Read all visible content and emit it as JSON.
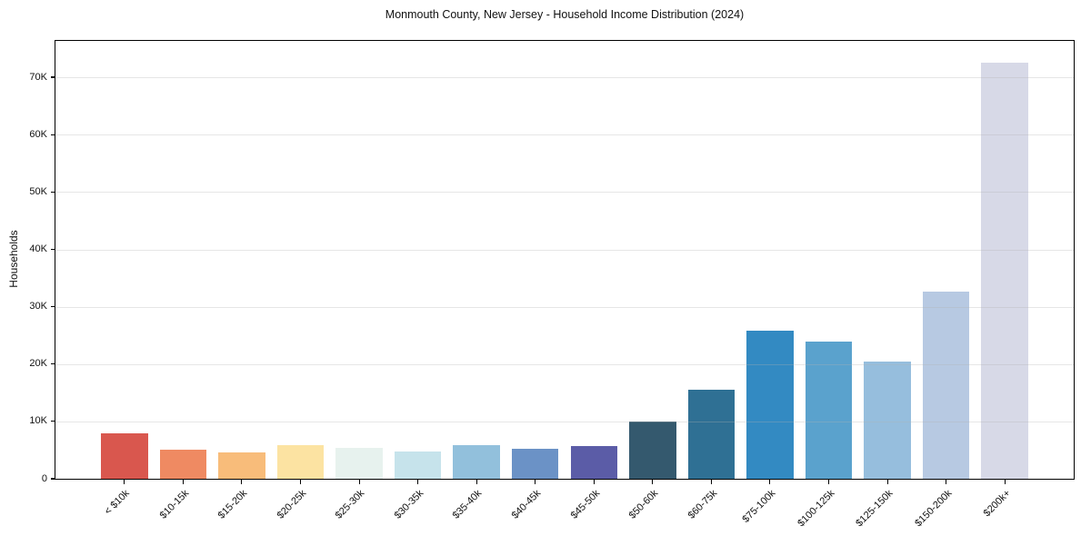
{
  "chart_data": {
    "type": "bar",
    "title": "Monmouth County, New Jersey - Household Income Distribution (2024)",
    "xlabel": "",
    "ylabel": "Households",
    "categories": [
      "< $10k",
      "$10-15k",
      "$15-20k",
      "$20-25k",
      "$25-30k",
      "$30-35k",
      "$35-40k",
      "$40-45k",
      "$45-50k",
      "$50-60k",
      "$60-75k",
      "$75-100k",
      "$100-125k",
      "$125-150k",
      "$150-200k",
      "$200k+"
    ],
    "values": [
      8000,
      5100,
      4600,
      5800,
      5400,
      4800,
      5800,
      5300,
      5700,
      10000,
      15600,
      25800,
      23900,
      20400,
      32700,
      72600
    ],
    "bar_colors": [
      "#d9574e",
      "#ef8a62",
      "#f8bc7a",
      "#fce3a2",
      "#e7f2ee",
      "#c6e3eb",
      "#92c0dc",
      "#6b92c6",
      "#5b5ca7",
      "#34596e",
      "#2f7094",
      "#338ac2",
      "#5aa2cd",
      "#96bedd",
      "#b7c9e2",
      "#d7d9e7"
    ],
    "yticks": [
      {
        "value": 0,
        "label": "0"
      },
      {
        "value": 10000,
        "label": "10K"
      },
      {
        "value": 20000,
        "label": "20K"
      },
      {
        "value": 30000,
        "label": "30K"
      },
      {
        "value": 40000,
        "label": "40K"
      },
      {
        "value": 50000,
        "label": "50K"
      },
      {
        "value": 60000,
        "label": "60K"
      },
      {
        "value": 70000,
        "label": "70K"
      }
    ],
    "ylim": [
      0,
      76500
    ],
    "grid": "horizontal",
    "legend": "none",
    "axis_color": "#000000",
    "grid_color": "#e9e9e9",
    "background_color": "#ffffff"
  }
}
